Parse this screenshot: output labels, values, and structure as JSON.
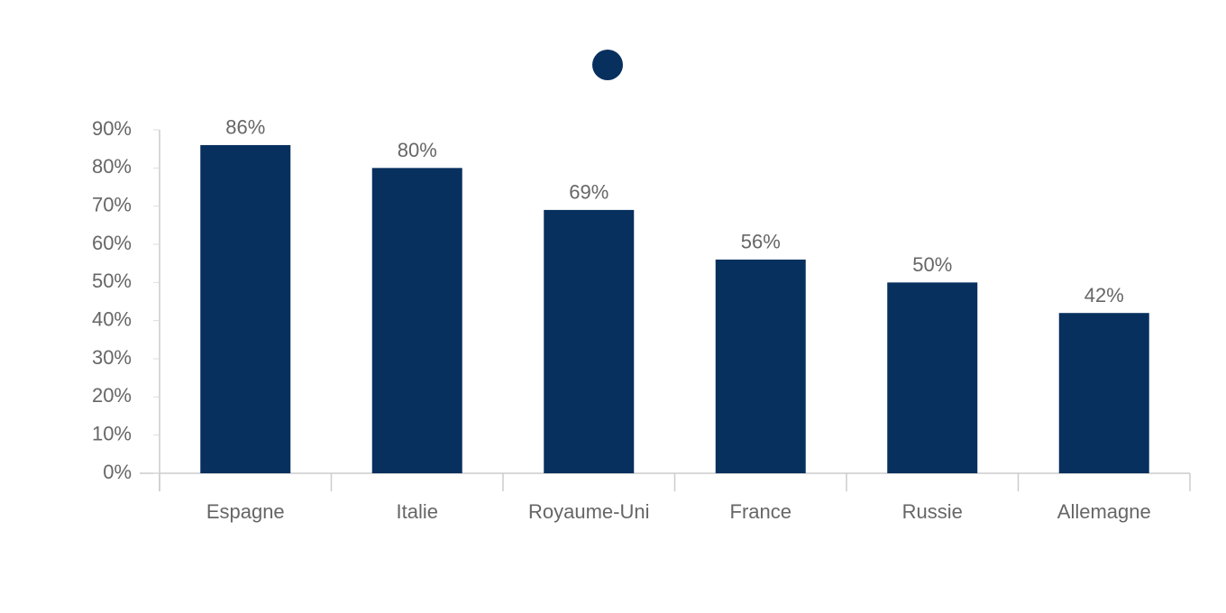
{
  "chart_data": {
    "type": "bar",
    "categories": [
      "Espagne",
      "Italie",
      "Royaume-Uni",
      "France",
      "Russie",
      "Allemagne"
    ],
    "series": [
      {
        "color": "#08305f",
        "values": [
          86,
          80,
          69,
          56,
          50,
          42
        ],
        "value_labels": [
          "86%",
          "80%",
          "69%",
          "56%",
          "50%",
          "42%"
        ]
      }
    ],
    "ylim": [
      0,
      90
    ],
    "yticks": [
      {
        "value": 0,
        "label": "0%"
      },
      {
        "value": 10,
        "label": "10%"
      },
      {
        "value": 20,
        "label": "20%"
      },
      {
        "value": 30,
        "label": "30%"
      },
      {
        "value": 40,
        "label": "40%"
      },
      {
        "value": 50,
        "label": "50%"
      },
      {
        "value": 60,
        "label": "60%"
      },
      {
        "value": 70,
        "label": "70%"
      },
      {
        "value": 80,
        "label": "80%"
      },
      {
        "value": 90,
        "label": "90%"
      }
    ],
    "grid": false
  }
}
